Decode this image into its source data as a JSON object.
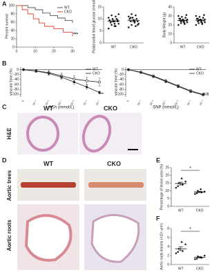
{
  "panels": {
    "letters": [
      "A",
      "B",
      "C",
      "D",
      "E",
      "F"
    ],
    "he": "H&E",
    "c_header": [
      "WT",
      "CKO"
    ],
    "d_header": [
      "WT",
      "CKO"
    ],
    "trees": "Aortic trees",
    "roots": "Aortic roots"
  },
  "chart_data": [
    {
      "type": "step",
      "ylabel": "Percent survival",
      "xlim": [
        0,
        30
      ],
      "xticks": [
        0,
        10,
        20,
        30
      ],
      "ylim": [
        0,
        100
      ],
      "yticks": [
        0,
        20,
        40,
        60,
        80,
        100
      ],
      "annotation": "***",
      "legend": "top-right",
      "series": [
        {
          "name": "WT",
          "color": "#555555",
          "x": [
            0,
            6,
            10,
            14,
            18,
            22,
            26,
            30
          ],
          "values": [
            100,
            95,
            90,
            82,
            76,
            70,
            64,
            58
          ]
        },
        {
          "name": "CKO",
          "color": "#e0452c",
          "x": [
            0,
            3,
            6,
            9,
            12,
            15,
            20,
            25,
            30
          ],
          "values": [
            100,
            90,
            80,
            68,
            58,
            50,
            44,
            36,
            26
          ]
        }
      ]
    },
    {
      "type": "dot",
      "ylabel": "Postprandial blood glucose (mmol/L)",
      "categories": [
        "WT",
        "CKO"
      ],
      "ylim": [
        0,
        15
      ],
      "yticks": [
        0,
        5,
        10,
        15
      ],
      "values": [
        [
          6,
          7,
          7.5,
          8,
          8,
          8.5,
          9,
          9,
          9.5,
          10,
          10,
          10.5,
          11,
          11.5,
          12,
          7,
          8.5,
          9.5
        ],
        [
          6.5,
          7,
          7.5,
          8,
          8.5,
          9,
          9,
          9.5,
          10,
          10,
          10.5,
          11,
          11.5,
          12,
          8,
          9,
          10.5,
          7.5
        ]
      ],
      "means": [
        9.1,
        9.3
      ],
      "sems": [
        0.4,
        0.4
      ]
    },
    {
      "type": "dot",
      "ylabel": "Body Weight (g)",
      "categories": [
        "WT",
        "CKO"
      ],
      "ylim": [
        0,
        40
      ],
      "yticks": [
        0,
        10,
        20,
        30,
        40
      ],
      "values": [
        [
          20,
          21,
          22,
          23,
          24,
          25,
          25,
          26,
          27,
          28,
          29,
          30,
          22,
          24,
          26,
          23,
          27,
          31
        ],
        [
          20,
          21,
          22,
          23,
          24,
          24,
          25,
          26,
          27,
          28,
          29,
          30,
          22,
          25,
          26,
          23,
          27,
          31
        ]
      ],
      "means": [
        25,
        25.3
      ],
      "sems": [
        0.7,
        0.7
      ]
    },
    {
      "type": "line",
      "xlabel": "ACh (mmol/L)",
      "ylabel": "vascular tone (%)",
      "categories": [
        "0",
        "10⁻⁹",
        "10⁻⁸",
        "10⁻⁷",
        "10⁻⁶",
        "10⁻⁵",
        "10⁻⁴"
      ],
      "ylim": [
        -110,
        10
      ],
      "yticks": [
        0,
        -20,
        -40,
        -60,
        -80,
        -100
      ],
      "annotation": "***",
      "series": [
        {
          "name": "WT",
          "color": "#222222",
          "values": [
            0,
            -5,
            -12,
            -25,
            -38,
            -45,
            -50
          ],
          "errors": [
            2,
            6,
            10,
            12,
            14,
            15,
            16
          ]
        },
        {
          "name": "CKO",
          "color": "#222222",
          "values": [
            0,
            -6,
            -15,
            -30,
            -50,
            -70,
            -92
          ],
          "errors": [
            2,
            4,
            6,
            8,
            8,
            8,
            6
          ]
        }
      ]
    },
    {
      "type": "line",
      "xlabel": "SNP (mmol/L)",
      "ylabel": "vascular tone (%)",
      "categories": [
        "0",
        "10⁻⁹",
        "10⁻⁸",
        "10⁻⁷",
        "10⁻⁶",
        "10⁻⁵",
        "10⁻⁴"
      ],
      "ylim": [
        -110,
        10
      ],
      "yticks": [
        0,
        -20,
        -40,
        -60,
        -80,
        -100
      ],
      "annotation": "N.S",
      "series": [
        {
          "name": "WT",
          "color": "#222222",
          "values": [
            0,
            -10,
            -25,
            -45,
            -65,
            -85,
            -100
          ],
          "errors": [
            2,
            3,
            4,
            5,
            5,
            4,
            3
          ]
        },
        {
          "name": "CKO",
          "color": "#222222",
          "values": [
            0,
            -12,
            -28,
            -48,
            -68,
            -88,
            -102
          ],
          "errors": [
            2,
            3,
            4,
            5,
            5,
            4,
            3
          ]
        }
      ]
    },
    {
      "type": "dot",
      "ylabel": "Percentage of lesion area (%)",
      "categories": [
        "WT",
        "CKO"
      ],
      "ylim": [
        0,
        25
      ],
      "yticks": [
        0,
        5,
        10,
        15,
        20,
        25
      ],
      "annotation": "*",
      "values": [
        [
          12,
          14,
          15,
          16,
          18,
          13
        ],
        [
          8,
          9,
          10,
          9.5,
          11,
          8.5
        ]
      ],
      "means": [
        14.7,
        9.3
      ],
      "sems": [
        0.9,
        0.4
      ]
    },
    {
      "type": "dot",
      "ylabel": "Aortic roots lesions (×10⁵ μm²)",
      "categories": [
        "WT",
        "CKO"
      ],
      "ylim": [
        0,
        8
      ],
      "yticks": [
        0,
        2,
        4,
        6,
        8
      ],
      "annotation": "*",
      "values": [
        [
          2.5,
          3,
          3.5,
          4.5,
          5,
          2.8
        ],
        [
          1.2,
          1.5,
          1.8,
          2,
          1.6,
          1.3
        ]
      ],
      "means": [
        3.5,
        1.6
      ],
      "sems": [
        0.4,
        0.15
      ]
    }
  ]
}
